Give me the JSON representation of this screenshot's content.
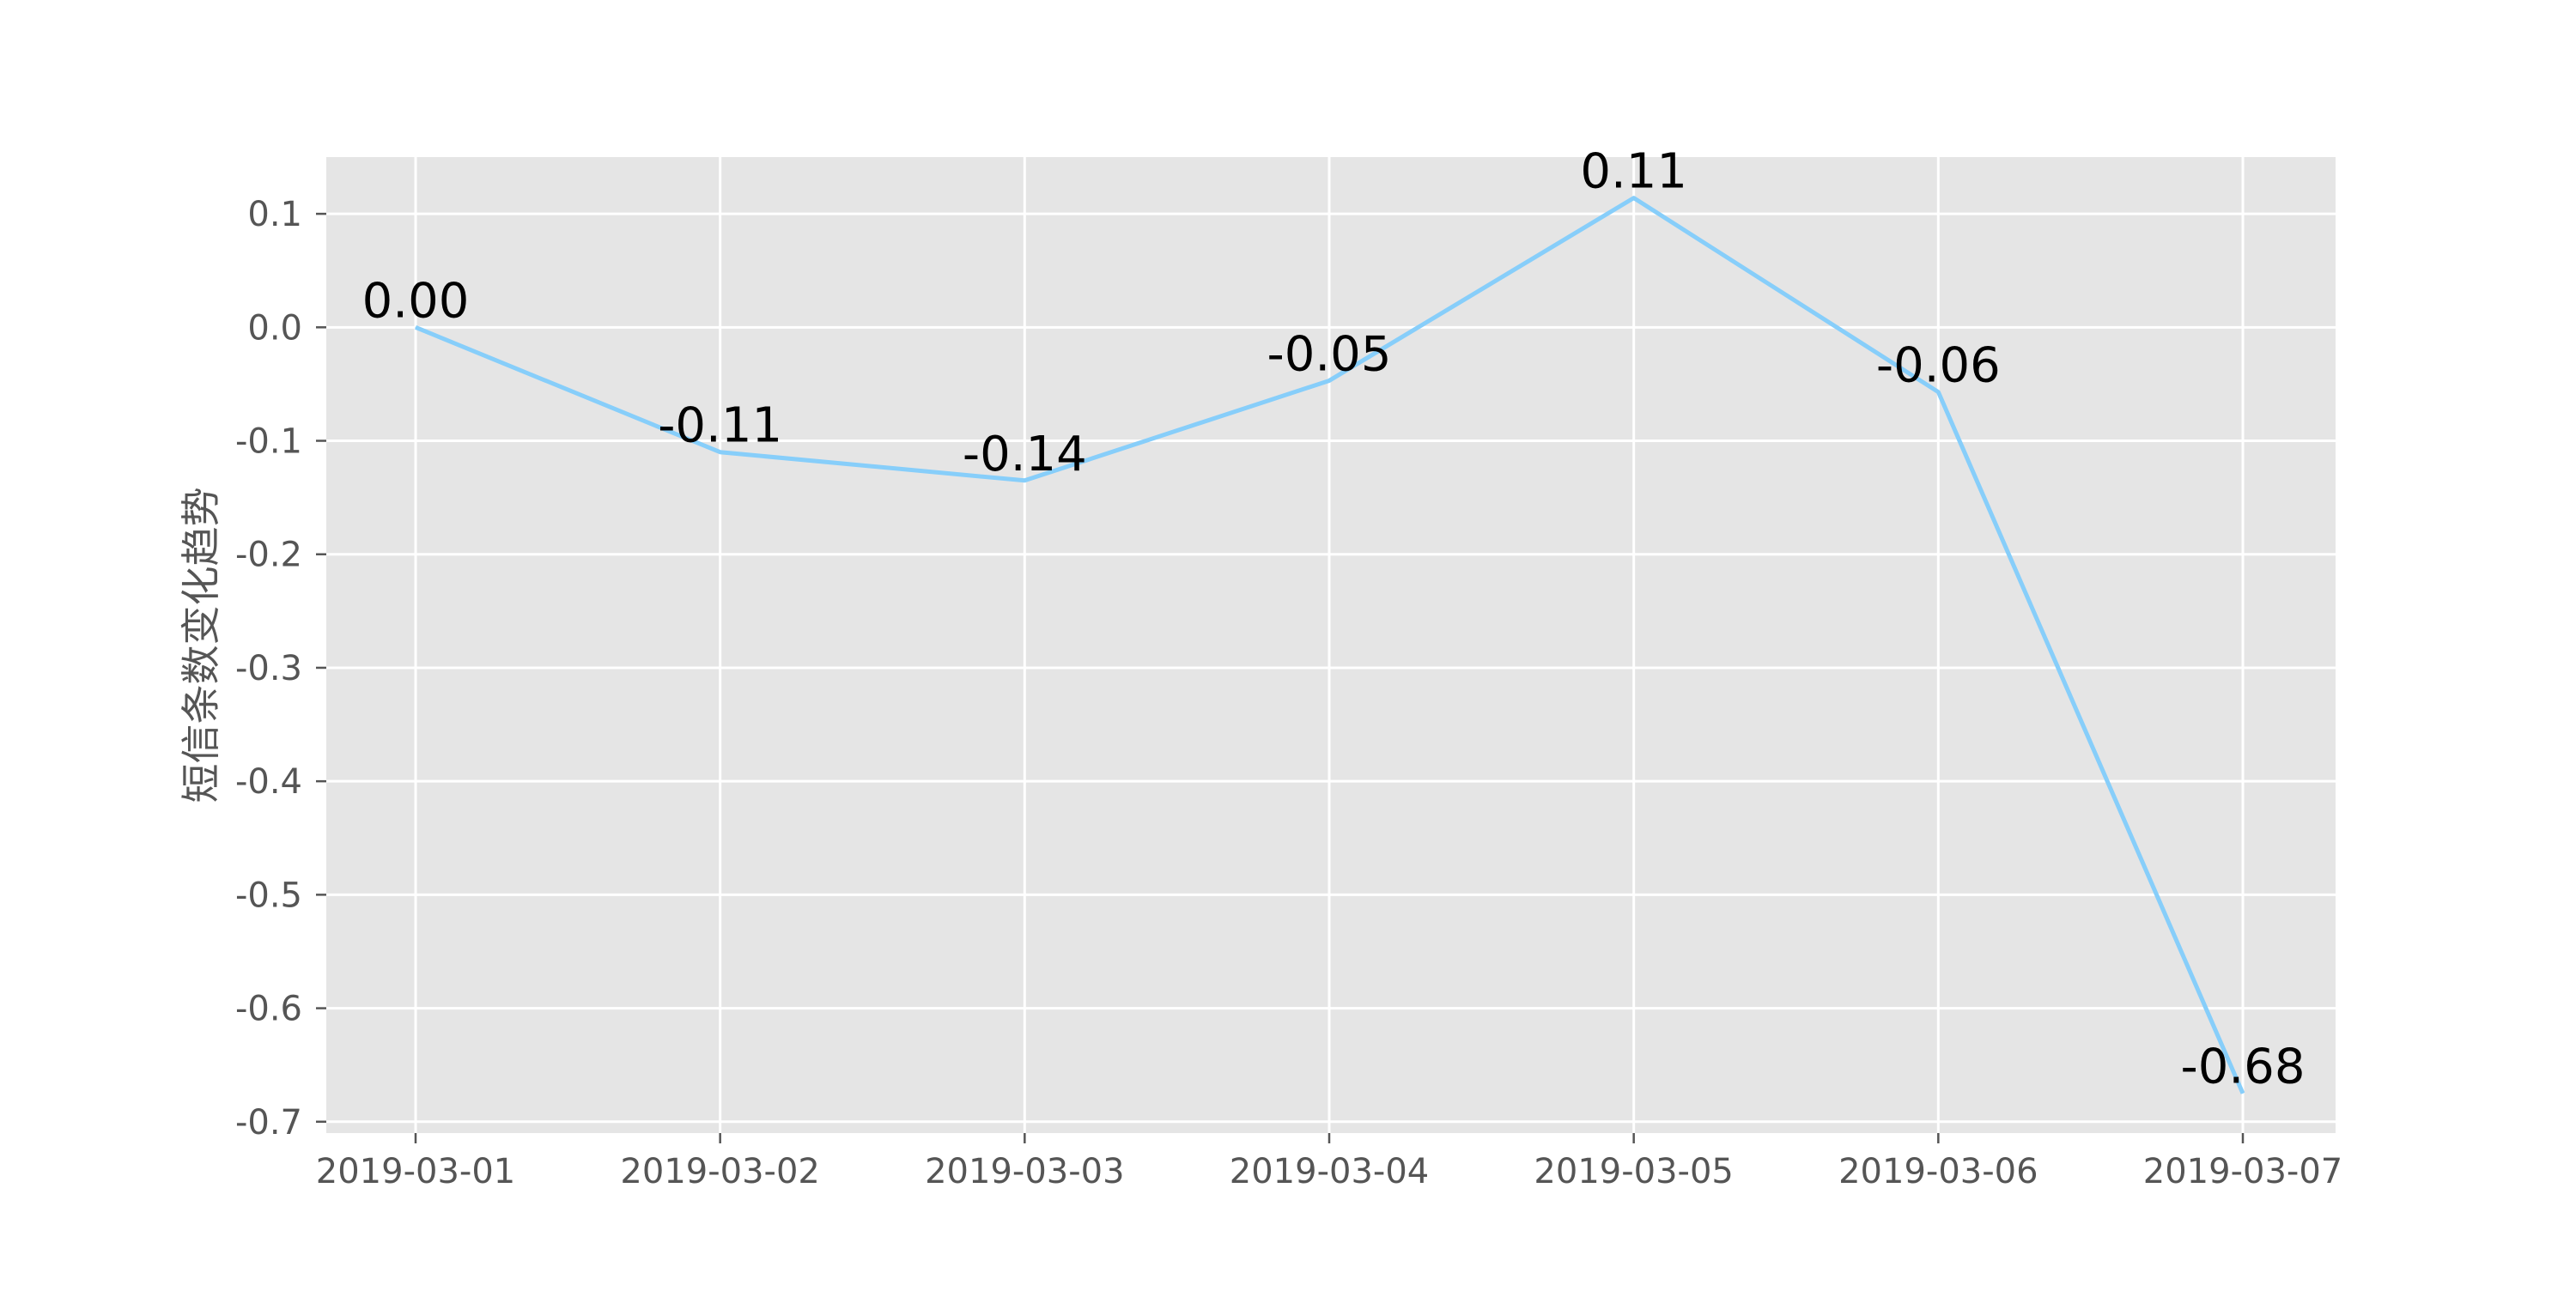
{
  "chart_data": {
    "type": "line",
    "title": "",
    "xlabel": "",
    "ylabel": "短信条数变化趋势",
    "categories": [
      "2019-03-01",
      "2019-03-02",
      "2019-03-03",
      "2019-03-04",
      "2019-03-05",
      "2019-03-06",
      "2019-03-07"
    ],
    "series": [
      {
        "values": [
          0.0,
          -0.11,
          -0.135,
          -0.047,
          0.114,
          -0.057,
          -0.675
        ],
        "labels": [
          "0.00",
          "-0.11",
          "-0.14",
          "-0.05",
          "0.11",
          "-0.06",
          "-0.68"
        ],
        "color": "#87cefa"
      }
    ],
    "ylim": [
      -0.71,
      0.15
    ],
    "yticks": [
      0.1,
      0.0,
      -0.1,
      -0.2,
      -0.3,
      -0.4,
      -0.5,
      -0.6,
      -0.7
    ],
    "ytick_labels": [
      "0.1",
      "0.0",
      "-0.1",
      "-0.2",
      "-0.3",
      "-0.4",
      "-0.5",
      "-0.6",
      "-0.7"
    ],
    "grid": true,
    "style": {
      "plot_background": "#e5e5e5",
      "grid_color": "#ffffff",
      "tick_color": "#555555"
    }
  }
}
